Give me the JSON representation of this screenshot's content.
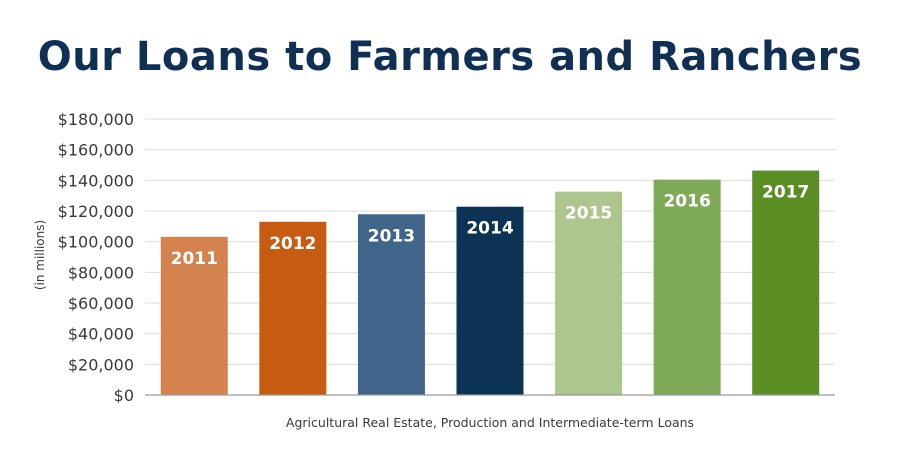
{
  "chart_data": {
    "type": "bar",
    "title": "Our Loans to Farmers and Ranchers",
    "xlabel": "Agricultural Real Estate, Production and Intermediate-term Loans",
    "ylabel": "(in millions)",
    "categories": [
      "2011",
      "2012",
      "2013",
      "2014",
      "2015",
      "2016",
      "2017"
    ],
    "values": [
      105000,
      115000,
      120000,
      125000,
      135000,
      143000,
      149000
    ],
    "ylim": [
      0,
      160000
    ],
    "yticks": [
      "$0",
      "$20,000",
      "$40,000",
      "$60,000",
      "$80,000",
      "$100,000",
      "$120,000",
      "$140,000",
      "$160,000",
      "$180,000"
    ],
    "grid": true,
    "colors": [
      "#d4834f",
      "#c75b12",
      "#41658a",
      "#0d3354",
      "#adc68e",
      "#7faa57",
      "#5a8d23"
    ]
  }
}
